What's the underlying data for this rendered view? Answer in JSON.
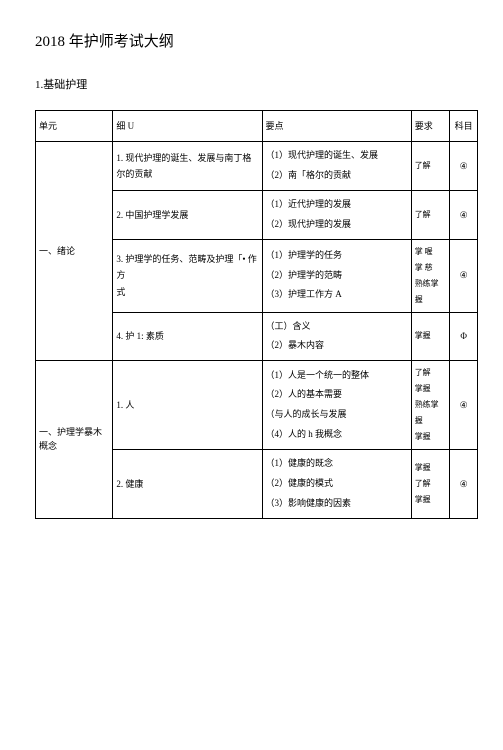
{
  "title": "2018 年护师考试大纲",
  "subtitle": "1.基础护理",
  "headers": {
    "unit": "单元",
    "detail": "细 U",
    "points": "要点",
    "req": "要求",
    "subject": "科目"
  },
  "rows": [
    {
      "unit": "一、绪论",
      "unitRowspan": 4,
      "detail": "1. 现代护理的诞生、发展与南丁格尔的贡献",
      "points": "（1）现代护理的诞生、发展\n（2）南「格尔的贡献",
      "req": "了解",
      "subject": "④"
    },
    {
      "detail": "2. 中国护理学发展",
      "points": "（1）近代护理的发展\n（2）现代护理的发展",
      "req": "了解",
      "subject": "④"
    },
    {
      "detail": "3. 护理学的任务、范畴及护理「• 作方\n式",
      "points": "（1）护理学的任务\n（2）护理学的范畴\n（3）护理工作方 A",
      "req": "掌 喔\n掌 慈\n熟练掌\n握",
      "subject": "④"
    },
    {
      "detail": "4. 护 1: 素质",
      "points": "（工）含义\n（2）暴木内容",
      "req": "掌握",
      "subject": "Φ"
    },
    {
      "unit": "一、护理学暴木概念",
      "unitRowspan": 2,
      "detail": "1. 人",
      "points": "（1）人是一个统一的整体\n（2）人的基本需要\n（与人的成长与发展\n（4）人的 h 我概念",
      "req": "了解\n掌握\n熟练掌\n握\n掌握",
      "subject": "④"
    },
    {
      "detail": "2. 健康",
      "points": "（1）健康的既念\n（2）健康的模式\n（3）影响健康的因素",
      "req": " 掌握\n了解\n掌握",
      "subject": "④"
    }
  ]
}
